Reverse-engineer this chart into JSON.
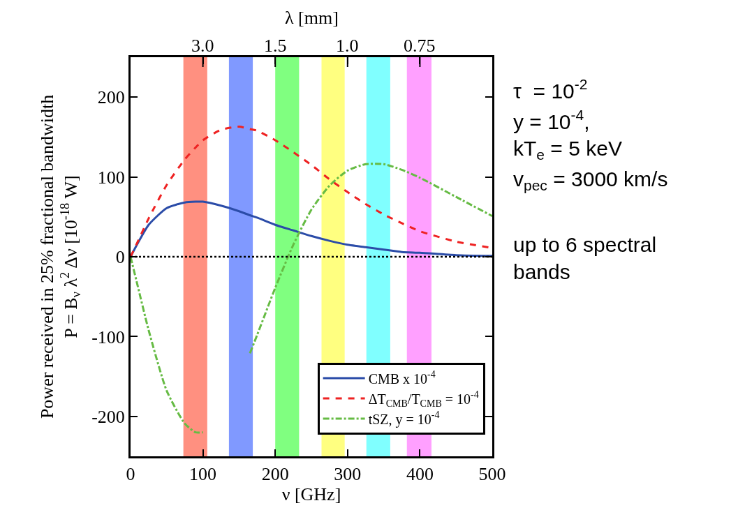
{
  "chart_data": {
    "type": "line",
    "xlabel": "ν [GHz]",
    "ylabel": "Power received in 25% fractional bandwidth\nP = B$_{ν}$ λ$^{2}$ Δν [10$^{-18}$ W]",
    "x": [
      0,
      10,
      25,
      50,
      75,
      90,
      100,
      125,
      150,
      165,
      175,
      200,
      225,
      250,
      275,
      300,
      325,
      350,
      375,
      400,
      450,
      500
    ],
    "series": [
      {
        "name": "CMB x 10$^{-4}$",
        "color": "#2b4ca8",
        "line_style": "solid",
        "values": [
          0,
          17,
          40,
          61,
          68,
          69,
          69,
          64,
          57,
          52,
          49,
          40,
          33,
          26,
          20,
          15,
          12,
          9,
          6,
          5,
          2,
          1
        ]
      },
      {
        "name": "ΔT$_{CMB}$/T$_{CMB}$ = 10$^{-4}$",
        "color": "#ee2222",
        "line_style": "dashed",
        "values": [
          0,
          19,
          48,
          90,
          122,
          137,
          146,
          159,
          163,
          160,
          158,
          146,
          131,
          115,
          97,
          81,
          66,
          53,
          42,
          32,
          19,
          11
        ]
      },
      {
        "name": "tSZ, y = 10$^{-4}$",
        "color": "#66bb44",
        "line_style": "dashdot",
        "values": [
          0,
          -37,
          -92,
          -168,
          -209,
          -220,
          -220,
          null,
          null,
          -121,
          -98,
          -39,
          15,
          59,
          89,
          108,
          116,
          116,
          109,
          99,
          75,
          51
        ]
      }
    ],
    "xlim": [
      0,
      500
    ],
    "xticks": [
      0,
      100,
      200,
      300,
      400,
      500
    ],
    "ylim": [
      -250,
      250
    ],
    "yticks": [
      -200,
      -100,
      0,
      100,
      200
    ],
    "ref_lines": [
      {
        "axis": "y",
        "value": 0,
        "color": "#000000",
        "line_style": "dotted"
      }
    ],
    "bands": [
      {
        "axis": "x",
        "from": 73,
        "to": 106,
        "color": "#ff9080"
      },
      {
        "axis": "x",
        "from": 136,
        "to": 169,
        "color": "#8099ff"
      },
      {
        "axis": "x",
        "from": 200,
        "to": 233,
        "color": "#80ff80"
      },
      {
        "axis": "x",
        "from": 264,
        "to": 296,
        "color": "#ffff80"
      },
      {
        "axis": "x",
        "from": 326,
        "to": 359,
        "color": "#80ffff"
      },
      {
        "axis": "x",
        "from": 382,
        "to": 416,
        "color": "#ffa0ff"
      }
    ],
    "annotations": [
      "λ [mm]",
      {
        "text": "3.0",
        "x": 100
      },
      {
        "text": "1.5",
        "x": 200
      },
      {
        "text": "1.0",
        "x": 300
      },
      {
        "text": "0.75",
        "x": 400
      },
      "τ  = 10$^{-2}$",
      "y = 10$^{-4}$,",
      "kT$_{e}$ = 5 keV",
      "v$_{pec}$ = 3000 km/s",
      "up to 6 spectral\nbands"
    ],
    "legend": "bottom right",
    "grid": false,
    "marker": "none"
  }
}
